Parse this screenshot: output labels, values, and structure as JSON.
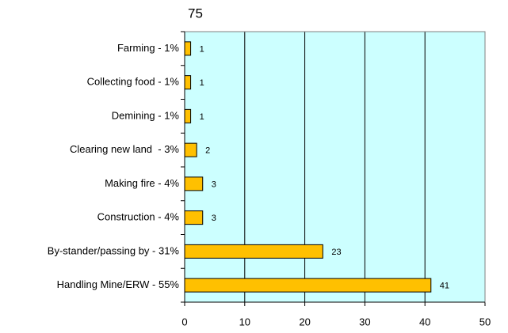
{
  "chart_data": {
    "type": "bar",
    "orientation": "horizontal",
    "title": "75",
    "categories": [
      "Farming - 1%",
      "Collecting food - 1%",
      "Demining - 1%",
      "Clearing new land  - 3%",
      "Making fire - 4%",
      "Construction - 4%",
      "By-stander/passing by - 31%",
      "Handling Mine/ERW - 55%"
    ],
    "values": [
      1,
      1,
      1,
      2,
      3,
      3,
      23,
      41
    ],
    "color": "#ffc000",
    "plot_background": "#ccffff",
    "xlim": [
      0,
      50
    ],
    "xticks": [
      0,
      10,
      20,
      30,
      40,
      50
    ],
    "grid": true
  }
}
